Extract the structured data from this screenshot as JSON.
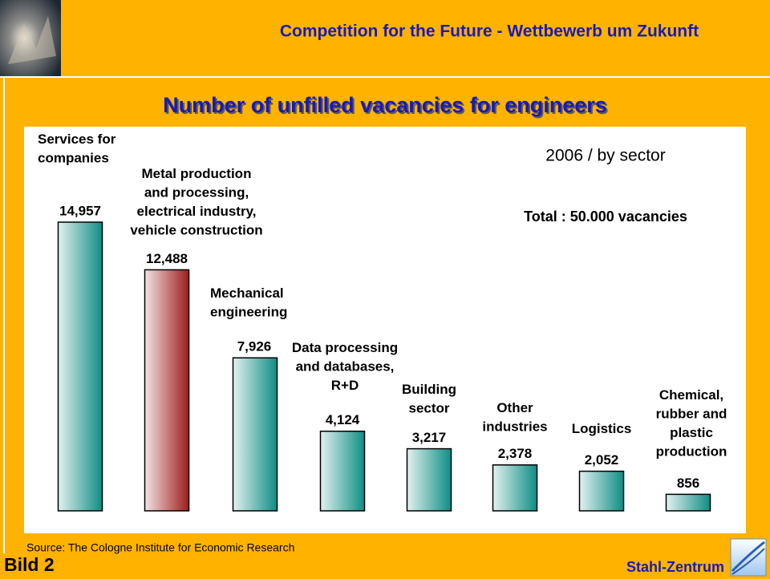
{
  "header": {
    "title": "Competition for the Future - Wettbewerb um Zukunft"
  },
  "chart_data": {
    "type": "bar",
    "title": "Number of unfilled vacancies for engineers",
    "subtitle": "2006 / by sector",
    "annotation": "Total : 50.000 vacancies",
    "categories": [
      [
        "Services for",
        "companies"
      ],
      [
        "Metal production",
        "and processing,",
        "electrical industry,",
        "vehicle construction"
      ],
      [
        "Mechanical",
        "engineering"
      ],
      [
        "Data processing",
        "and databases,",
        "R+D"
      ],
      [
        "Building",
        "sector"
      ],
      [
        "Other",
        "industries"
      ],
      [
        "Logistics"
      ],
      [
        "Chemical,",
        "rubber and",
        "plastic",
        "production"
      ]
    ],
    "values": [
      14957,
      12488,
      7926,
      4124,
      3217,
      2378,
      2052,
      856
    ],
    "value_labels": [
      "14,957",
      "12,488",
      "7,926",
      "4,124",
      "3,217",
      "2,378",
      "2,052",
      "856"
    ],
    "colors": [
      "#0e8e84",
      "#9e1b1b",
      "#0e8e84",
      "#0e8e84",
      "#0e8e84",
      "#0e8e84",
      "#0e8e84",
      "#0e8e84"
    ]
  },
  "source": "Source: The Cologne Institute for Economic Research",
  "footer": {
    "label": "Bild 2",
    "brand": "Stahl-Zentrum"
  }
}
